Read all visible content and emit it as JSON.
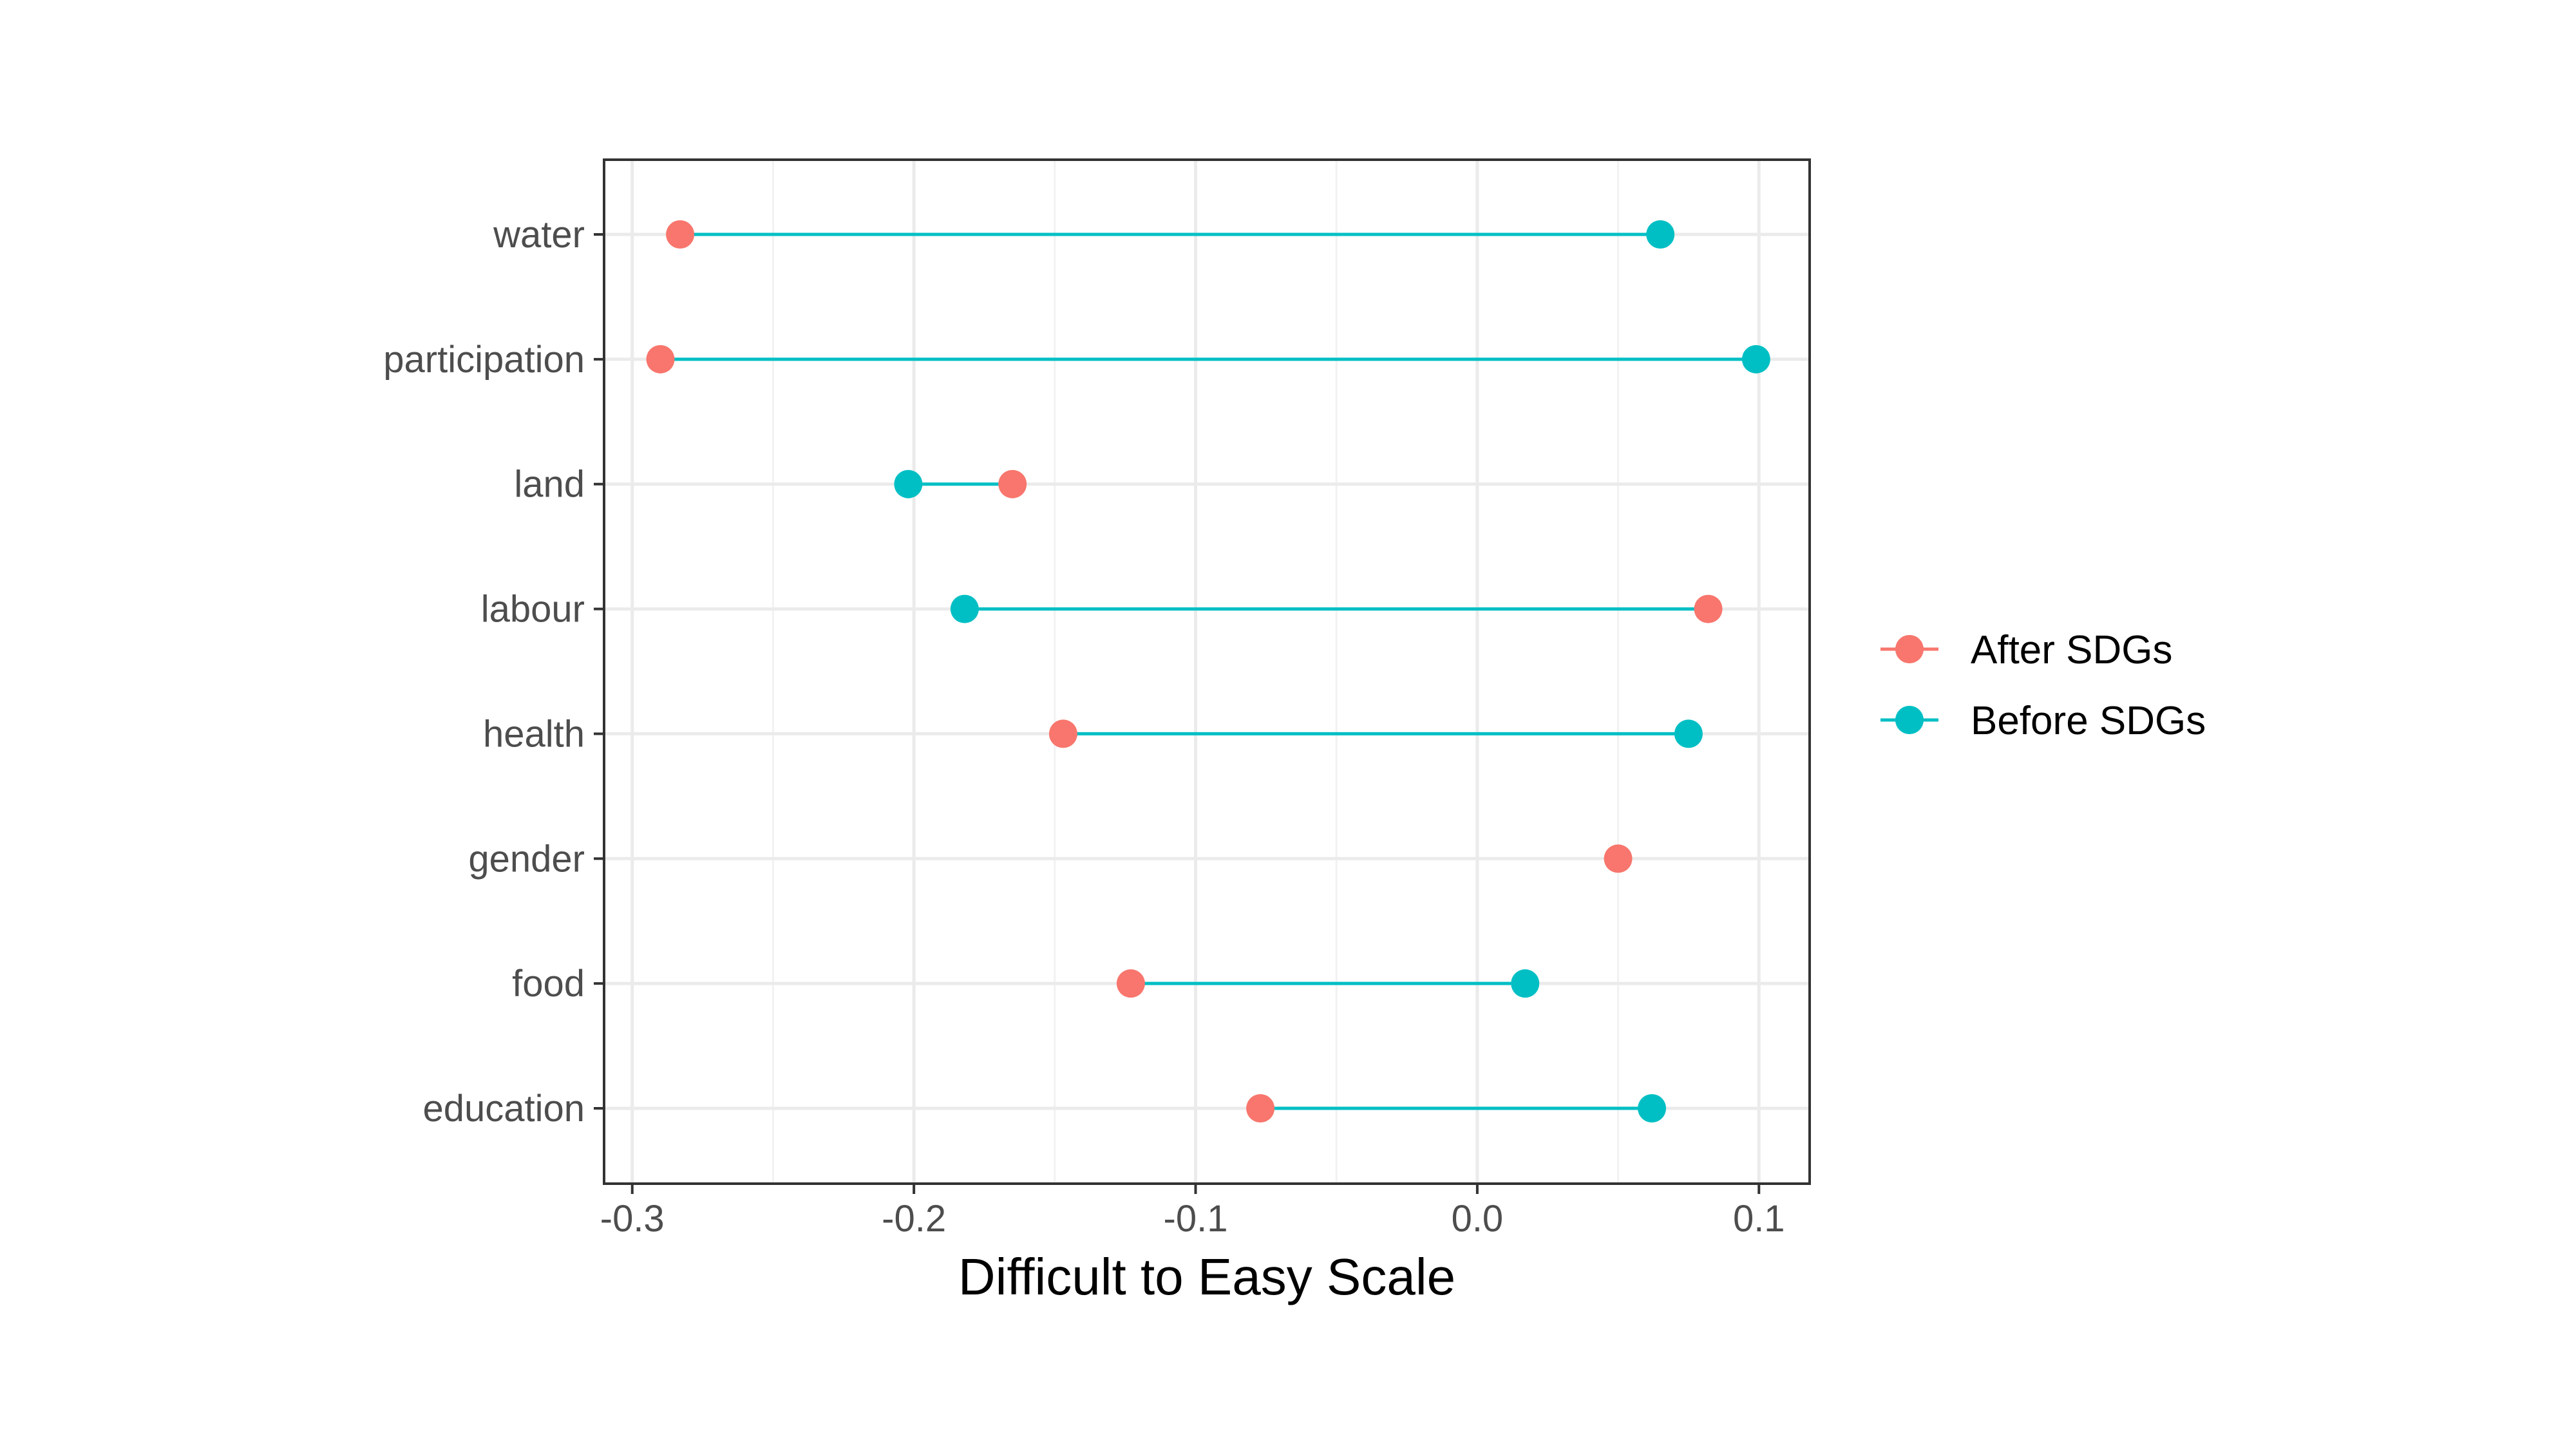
{
  "chart_data": {
    "type": "dumbbell",
    "xlabel": "Difficult to Easy Scale",
    "ylabel": "",
    "xlim": [
      -0.31,
      0.118
    ],
    "xticks": [
      -0.3,
      -0.2,
      -0.1,
      0.0,
      0.1
    ],
    "xtick_labels": [
      "-0.3",
      "-0.2",
      "-0.1",
      "0.0",
      "0.1"
    ],
    "categories": [
      "water",
      "participation",
      "land",
      "labour",
      "health",
      "gender",
      "food",
      "education"
    ],
    "series": [
      {
        "name": "After SDGs",
        "color": "#F8766D",
        "values": [
          -0.283,
          -0.29,
          -0.165,
          0.082,
          -0.147,
          0.05,
          -0.123,
          -0.077
        ]
      },
      {
        "name": "Before SDGs",
        "color": "#00BFC4",
        "values": [
          0.065,
          0.099,
          -0.202,
          -0.182,
          0.075,
          null,
          0.017,
          0.062
        ]
      }
    ],
    "segment_color": "#00BFC4",
    "legend_position": "right",
    "grid": true,
    "theme": "bw"
  }
}
